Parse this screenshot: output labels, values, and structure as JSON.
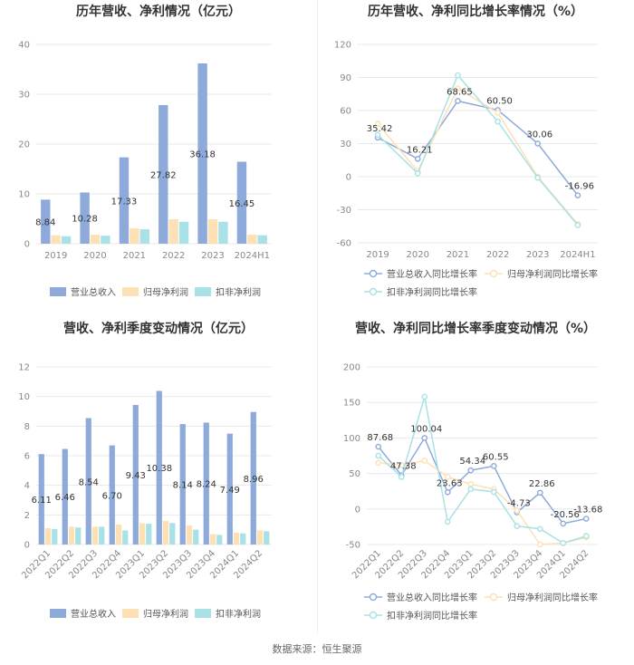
{
  "footer": {
    "source": "数据来源：恒生聚源"
  },
  "legend": {
    "bars": [
      "营业总收入",
      "归母净利润",
      "扣非净利润"
    ],
    "lines": [
      "营业总收入同比增长率",
      "归母净利润同比增长率",
      "扣非净利润同比增长率"
    ]
  },
  "colors": {
    "revenue": "#8eaadb",
    "net_profit": "#fde0b4",
    "deducted_profit": "#a8e1e6",
    "grid": "#e8e8e8"
  },
  "chart_data": [
    {
      "id": "annual_bar",
      "type": "bar",
      "title": "历年营收、净利情况（亿元）",
      "categories": [
        "2019",
        "2020",
        "2021",
        "2022",
        "2023",
        "2024H1"
      ],
      "series": [
        {
          "name": "营业总收入",
          "values": [
            8.84,
            10.28,
            17.33,
            27.82,
            36.18,
            16.45
          ],
          "labels": [
            "8.84",
            "10.28",
            "17.33",
            "27.82",
            "36.18",
            "16.45"
          ]
        },
        {
          "name": "归母净利润",
          "values": [
            1.7,
            1.8,
            3.1,
            4.9,
            4.9,
            1.8
          ]
        },
        {
          "name": "扣非净利润",
          "values": [
            1.5,
            1.6,
            2.9,
            4.4,
            4.4,
            1.7
          ]
        }
      ],
      "ylim": [
        0,
        40
      ],
      "yticks": [
        0,
        10,
        20,
        30,
        40
      ]
    },
    {
      "id": "annual_line",
      "type": "line",
      "title": "历年营收、净利同比增长率情况（%）",
      "categories": [
        "2019",
        "2020",
        "2021",
        "2022",
        "2023",
        "2024H1"
      ],
      "series": [
        {
          "name": "营业总收入同比增长率",
          "values": [
            35.42,
            16.21,
            68.65,
            60.5,
            30.06,
            -16.96
          ],
          "labels": [
            "35.42",
            "16.21",
            "68.65",
            "60.50",
            "30.06",
            "-16.96"
          ]
        },
        {
          "name": "归母净利润同比增长率",
          "values": [
            48,
            5,
            80,
            58,
            0,
            -43
          ]
        },
        {
          "name": "扣非净利润同比增长率",
          "values": [
            38,
            3,
            92,
            50,
            -1,
            -44
          ]
        }
      ],
      "ylim": [
        -60,
        120
      ],
      "yticks": [
        -60,
        -30,
        0,
        30,
        60,
        90,
        120
      ]
    },
    {
      "id": "quarter_bar",
      "type": "bar",
      "title": "营收、净利季度变动情况（亿元）",
      "categories": [
        "2022Q1",
        "2022Q2",
        "2022Q3",
        "2022Q4",
        "2023Q1",
        "2023Q2",
        "2023Q3",
        "2023Q4",
        "2024Q1",
        "2024Q2"
      ],
      "series": [
        {
          "name": "营业总收入",
          "values": [
            6.11,
            6.46,
            8.54,
            6.7,
            9.43,
            10.38,
            8.14,
            8.24,
            7.49,
            8.96
          ],
          "labels": [
            "6.11",
            "6.46",
            "8.54",
            "6.70",
            "9.43",
            "10.38",
            "8.14",
            "8.24",
            "7.49",
            "8.96"
          ]
        },
        {
          "name": "归母净利润",
          "values": [
            1.1,
            1.2,
            1.2,
            1.35,
            1.45,
            1.6,
            1.3,
            0.7,
            0.8,
            0.95
          ]
        },
        {
          "name": "扣非净利润",
          "values": [
            1.05,
            1.15,
            1.2,
            0.95,
            1.4,
            1.45,
            1.0,
            0.65,
            0.75,
            0.9
          ]
        }
      ],
      "ylim": [
        0,
        12
      ],
      "yticks": [
        0,
        2,
        4,
        6,
        8,
        10,
        12
      ]
    },
    {
      "id": "quarter_line",
      "type": "line",
      "title": "营收、净利同比增长率季度变动情况（%）",
      "categories": [
        "2022Q1",
        "2022Q2",
        "2022Q3",
        "2022Q4",
        "2023Q1",
        "2023Q2",
        "2023Q3",
        "2023Q4",
        "2024Q1",
        "2024Q2"
      ],
      "series": [
        {
          "name": "营业总收入同比增长率",
          "values": [
            87.68,
            47.38,
            100.04,
            23.63,
            54.34,
            60.55,
            -4.73,
            22.86,
            -20.56,
            -13.68
          ],
          "labels": [
            "87.68",
            "47.38",
            "100.04",
            "23.63",
            "54.34",
            "60.55",
            "-4.73",
            "22.86",
            "-20.56",
            "-13.68"
          ]
        },
        {
          "name": "归母净利润同比增长率",
          "values": [
            65,
            62,
            68,
            45,
            35,
            28,
            -2,
            -50,
            -48,
            -40
          ]
        },
        {
          "name": "扣非净利润同比增长率",
          "values": [
            75,
            45,
            158,
            -18,
            28,
            24,
            -24,
            -28,
            -48,
            -38
          ]
        }
      ],
      "ylim": [
        -50,
        200
      ],
      "yticks": [
        -50,
        0,
        50,
        100,
        150,
        200
      ]
    }
  ]
}
